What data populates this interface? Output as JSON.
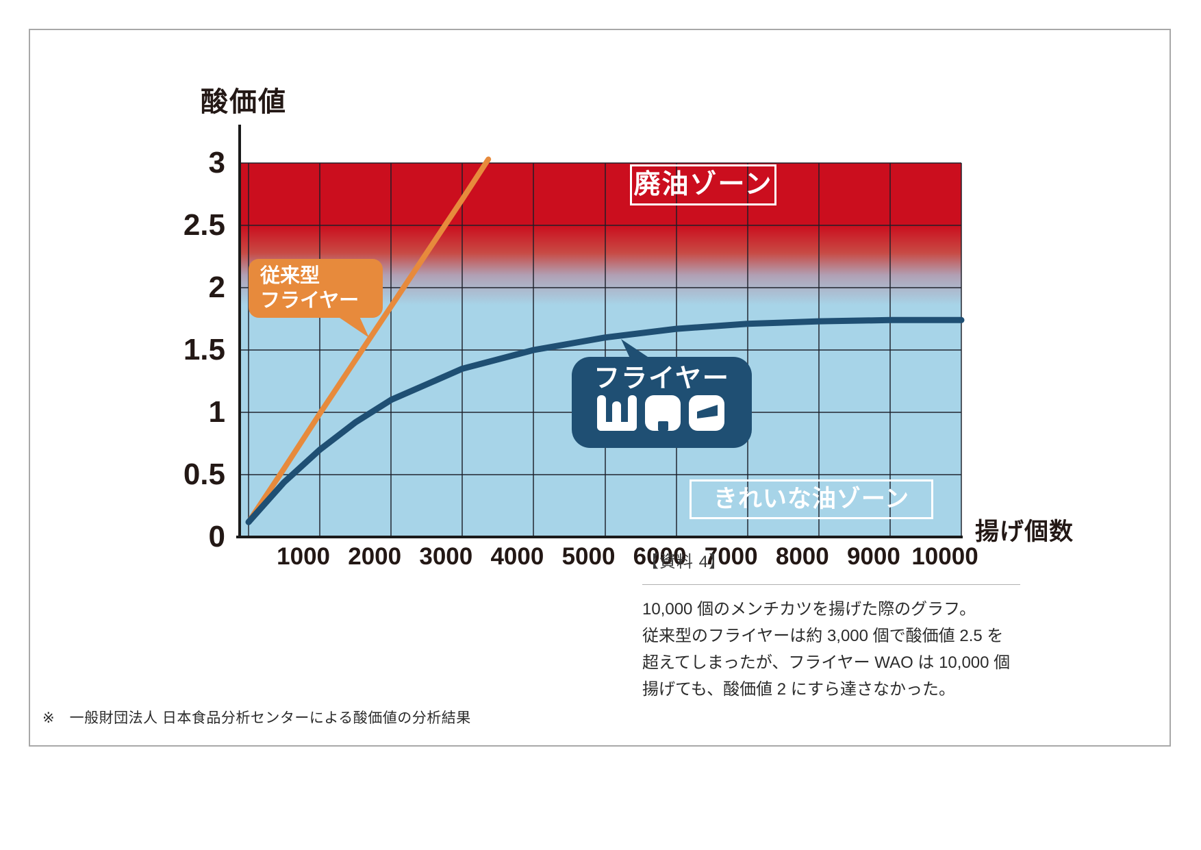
{
  "chart_data": {
    "type": "line",
    "title": "",
    "xlabel": "揚げ個数",
    "ylabel": "酸価値",
    "xlim": [
      0,
      10000
    ],
    "ylim": [
      0,
      3.2
    ],
    "grid": true,
    "x_ticks": [
      {
        "label": "1000",
        "value": 1000
      },
      {
        "label": "2000",
        "value": 2000
      },
      {
        "label": "3000",
        "value": 3000
      },
      {
        "label": "4000",
        "value": 4000
      },
      {
        "label": "5000",
        "value": 5000
      },
      {
        "label": "6000",
        "value": 6000
      },
      {
        "label": "7000",
        "value": 7000
      },
      {
        "label": "8000",
        "value": 8000
      },
      {
        "label": "9000",
        "value": 9000
      },
      {
        "label": "10000",
        "value": 10000
      }
    ],
    "y_ticks": [
      {
        "label": "3",
        "value": 3
      },
      {
        "label": "2.5",
        "value": 2.5
      },
      {
        "label": "2",
        "value": 2
      },
      {
        "label": "1.5",
        "value": 1.5
      },
      {
        "label": "1",
        "value": 1
      },
      {
        "label": "0.5",
        "value": 0.5
      },
      {
        "label": "0",
        "value": 0
      }
    ],
    "series": [
      {
        "name": "従来型フライヤー",
        "color": "#e78a3c",
        "x": [
          0,
          500,
          1000,
          2000,
          3000,
          3364
        ],
        "y": [
          0.12,
          0.55,
          0.99,
          1.85,
          2.71,
          3.03
        ]
      },
      {
        "name": "フライヤーWAO",
        "color": "#1f4f73",
        "x": [
          0,
          500,
          1000,
          1500,
          2000,
          3000,
          4000,
          5000,
          6000,
          7000,
          8000,
          9000,
          10000
        ],
        "y": [
          0.12,
          0.44,
          0.7,
          0.92,
          1.1,
          1.35,
          1.5,
          1.6,
          1.67,
          1.71,
          1.73,
          1.74,
          1.74
        ]
      }
    ],
    "zones": [
      {
        "label": "廃油ゾーン",
        "range": [
          2.5,
          3.0
        ],
        "color": "#cb0e1e"
      },
      {
        "label": "きれいな油ゾーン",
        "range": [
          0,
          2.2
        ],
        "color": "#a7d4e8"
      }
    ]
  },
  "axes": {
    "y_title": "酸価値",
    "x_title": "揚げ個数"
  },
  "zone_labels": {
    "waste": "廃油ゾーン",
    "clean": "きれいな油ゾーン"
  },
  "balloons": {
    "conventional_line1": "従来型",
    "conventional_line2": "フライヤー",
    "wao_line1": "フライヤー",
    "wao_logo": "WAO"
  },
  "caption": {
    "heading": "【資料 4】",
    "lines": [
      "10,000 個のメンチカツを揚げた際のグラフ。",
      "従来型のフライヤーは約 3,000 個で酸価値 2.5 を",
      "超えてしまったが、フライヤー WAO は 10,000 個",
      "揚げても、酸価値 2 にすら達さなかった。"
    ]
  },
  "footnote": "※　一般財団法人 日本食品分析センターによる酸価値の分析結果",
  "colors": {
    "waste_zone_red": "#cb0e1e",
    "clean_zone_blue": "#a7d4e8",
    "conventional_orange": "#e78a3c",
    "wao_navy": "#1f4f73"
  }
}
